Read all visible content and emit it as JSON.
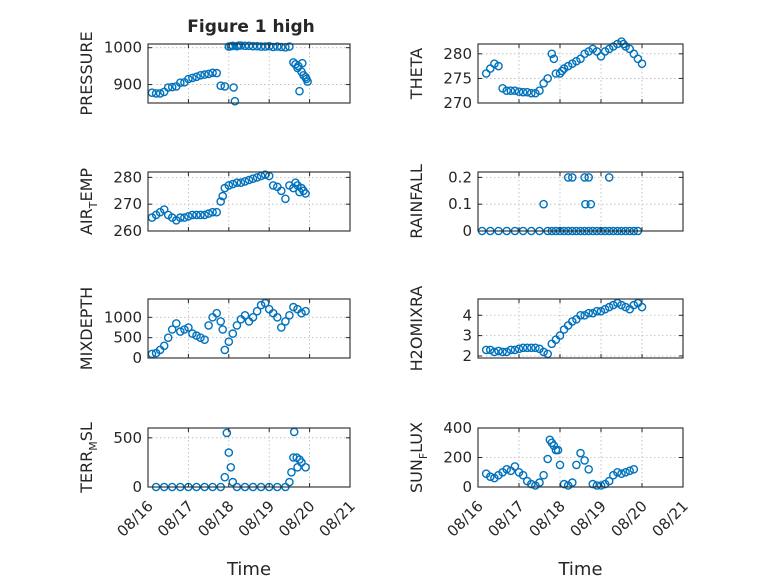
{
  "figure": {
    "title": "Figure 1 high"
  },
  "colors": {
    "marker": "#0072BD",
    "axes": "#262626",
    "grid": "#b8b8b8"
  },
  "chart_data": [
    {
      "type": "scatter",
      "ylabel": "PRESSURE",
      "ylabel_sub": "",
      "ylabel_tail": "",
      "ylim": [
        850,
        1010
      ],
      "yticks": [
        900,
        1000
      ],
      "xlim": [
        0,
        5
      ],
      "grid": true,
      "series": [
        {
          "x": [
            0.1,
            0.2,
            0.3,
            0.4,
            0.5,
            0.6,
            0.7,
            0.8,
            0.9,
            1.0,
            1.1,
            1.2,
            1.3,
            1.4,
            1.5,
            1.6,
            1.7,
            1.8,
            1.9,
            2.0,
            2.05,
            2.1,
            2.12,
            2.15,
            2.2,
            2.25,
            2.3,
            2.4,
            2.5,
            2.6,
            2.7,
            2.8,
            2.9,
            3.0,
            3.1,
            3.2,
            3.3,
            3.4,
            3.5,
            3.6,
            3.65,
            3.7,
            3.72,
            3.75,
            3.8,
            3.82,
            3.85,
            3.9,
            3.92,
            3.95
          ],
          "y": [
            878,
            876,
            876,
            880,
            892,
            893,
            895,
            905,
            906,
            915,
            918,
            921,
            925,
            927,
            929,
            932,
            931,
            897,
            895,
            1003,
            1004,
            1005,
            892,
            855,
            1004,
            1006,
            1006,
            1005,
            1005,
            1004,
            1004,
            1003,
            1003,
            1004,
            1002,
            1003,
            1002,
            1001,
            1003,
            960,
            955,
            945,
            950,
            882,
            935,
            958,
            925,
            920,
            915,
            908
          ]
        }
      ]
    },
    {
      "type": "scatter",
      "ylabel": "THETA",
      "ylabel_sub": "",
      "ylabel_tail": "",
      "ylim": [
        270,
        282
      ],
      "yticks": [
        270,
        275,
        280
      ],
      "xlim": [
        0,
        5
      ],
      "grid": true,
      "series": [
        {
          "x": [
            0.2,
            0.3,
            0.4,
            0.5,
            0.6,
            0.7,
            0.8,
            0.9,
            1.0,
            1.1,
            1.2,
            1.3,
            1.4,
            1.5,
            1.6,
            1.7,
            1.8,
            1.85,
            1.9,
            2.0,
            2.05,
            2.1,
            2.2,
            2.3,
            2.4,
            2.5,
            2.6,
            2.7,
            2.8,
            2.9,
            3.0,
            3.1,
            3.2,
            3.3,
            3.4,
            3.5,
            3.55,
            3.6,
            3.7,
            3.8,
            3.9,
            4.0
          ],
          "y": [
            276,
            277,
            278,
            277.5,
            273,
            272.5,
            272.5,
            272.5,
            272.3,
            272.2,
            272.2,
            272,
            272,
            272.5,
            274,
            275,
            280,
            279,
            276,
            276,
            276.5,
            277,
            277.5,
            278,
            278.5,
            279,
            280,
            280.5,
            281,
            280.5,
            279.5,
            280.5,
            281,
            281.5,
            282,
            282.5,
            282,
            281.5,
            281,
            280,
            279,
            278
          ]
        }
      ]
    },
    {
      "type": "scatter",
      "ylabel": "AIR",
      "ylabel_sub": "T",
      "ylabel_tail": "EMP",
      "ylim": [
        260,
        282
      ],
      "yticks": [
        260,
        270,
        280
      ],
      "xlim": [
        0,
        5
      ],
      "grid": true,
      "series": [
        {
          "x": [
            0.1,
            0.2,
            0.3,
            0.4,
            0.5,
            0.6,
            0.7,
            0.8,
            0.9,
            1.0,
            1.1,
            1.2,
            1.3,
            1.4,
            1.5,
            1.6,
            1.7,
            1.8,
            1.85,
            1.9,
            2.0,
            2.1,
            2.2,
            2.3,
            2.4,
            2.5,
            2.6,
            2.7,
            2.8,
            2.9,
            3.0,
            3.1,
            3.2,
            3.3,
            3.4,
            3.5,
            3.6,
            3.65,
            3.7,
            3.75,
            3.8,
            3.85,
            3.9
          ],
          "y": [
            265,
            266,
            267,
            268,
            266,
            265,
            264,
            265,
            265,
            265.5,
            266,
            266,
            266,
            266,
            266.5,
            267,
            267,
            271,
            273,
            276,
            277,
            277.5,
            278,
            278,
            278.5,
            279,
            279.5,
            280,
            280.5,
            281,
            280.5,
            277,
            276.5,
            275,
            272,
            277,
            276,
            278,
            277,
            274.5,
            276,
            275,
            274
          ]
        }
      ]
    },
    {
      "type": "scatter",
      "ylabel": "RAINFALL",
      "ylabel_sub": "",
      "ylabel_tail": "",
      "ylim": [
        0,
        0.22
      ],
      "yticks": [
        0,
        0.1,
        0.2
      ],
      "xlim": [
        0,
        5
      ],
      "grid": true,
      "series": [
        {
          "x": [
            0.1,
            0.3,
            0.5,
            0.7,
            0.9,
            1.1,
            1.3,
            1.5,
            1.7,
            1.8,
            1.9,
            2.0,
            2.1,
            2.2,
            2.3,
            2.4,
            2.5,
            2.6,
            2.7,
            2.8,
            2.9,
            3.0,
            3.1,
            3.2,
            3.3,
            3.4,
            3.5,
            3.6,
            3.7,
            3.8,
            3.9,
            1.6,
            2.2,
            2.3,
            2.6,
            2.7,
            2.75,
            3.2,
            2.62
          ],
          "y": [
            0,
            0,
            0,
            0,
            0,
            0,
            0,
            0,
            0,
            0,
            0,
            0,
            0,
            0,
            0,
            0,
            0,
            0,
            0,
            0,
            0,
            0,
            0,
            0,
            0,
            0,
            0,
            0,
            0,
            0,
            0,
            0.1,
            0.2,
            0.2,
            0.2,
            0.2,
            0.1,
            0.2,
            0.1
          ]
        }
      ]
    },
    {
      "type": "scatter",
      "ylabel": "MIXDEPTH",
      "ylabel_sub": "",
      "ylabel_tail": "",
      "ylim": [
        0,
        1450
      ],
      "yticks": [
        0,
        500,
        1000
      ],
      "xlim": [
        0,
        5
      ],
      "grid": true,
      "series": [
        {
          "x": [
            0.1,
            0.2,
            0.3,
            0.4,
            0.5,
            0.6,
            0.7,
            0.8,
            0.9,
            1.0,
            1.1,
            1.2,
            1.3,
            1.4,
            1.5,
            1.6,
            1.7,
            1.8,
            1.85,
            1.9,
            2.0,
            2.1,
            2.2,
            2.3,
            2.4,
            2.5,
            2.6,
            2.7,
            2.8,
            2.9,
            3.0,
            3.1,
            3.2,
            3.3,
            3.4,
            3.5,
            3.6,
            3.7,
            3.8,
            3.9
          ],
          "y": [
            100,
            120,
            200,
            300,
            500,
            700,
            850,
            650,
            700,
            750,
            600,
            550,
            500,
            450,
            800,
            1000,
            1100,
            900,
            700,
            200,
            400,
            600,
            800,
            950,
            1050,
            900,
            1000,
            1150,
            1300,
            1350,
            1200,
            1100,
            1000,
            750,
            900,
            1050,
            1250,
            1200,
            1100,
            1150
          ]
        }
      ]
    },
    {
      "type": "scatter",
      "ylabel": "H2OMIXRA",
      "ylabel_sub": "",
      "ylabel_tail": "",
      "ylim": [
        1.9,
        4.8
      ],
      "yticks": [
        2,
        3,
        4
      ],
      "xlim": [
        0,
        5
      ],
      "grid": true,
      "series": [
        {
          "x": [
            0.2,
            0.3,
            0.4,
            0.5,
            0.6,
            0.7,
            0.8,
            0.9,
            1.0,
            1.1,
            1.2,
            1.3,
            1.4,
            1.5,
            1.6,
            1.7,
            1.8,
            1.9,
            2.0,
            2.1,
            2.2,
            2.3,
            2.4,
            2.5,
            2.6,
            2.7,
            2.8,
            2.9,
            3.0,
            3.1,
            3.2,
            3.3,
            3.4,
            3.5,
            3.6,
            3.7,
            3.8,
            3.9,
            4.0
          ],
          "y": [
            2.3,
            2.3,
            2.2,
            2.25,
            2.2,
            2.2,
            2.3,
            2.3,
            2.35,
            2.4,
            2.4,
            2.4,
            2.4,
            2.35,
            2.2,
            2.1,
            2.6,
            2.8,
            3.0,
            3.3,
            3.5,
            3.7,
            3.8,
            4.0,
            4.0,
            4.1,
            4.1,
            4.2,
            4.2,
            4.3,
            4.4,
            4.5,
            4.6,
            4.5,
            4.4,
            4.3,
            4.5,
            4.6,
            4.4
          ]
        }
      ]
    },
    {
      "type": "scatter",
      "ylabel": "TERR",
      "ylabel_sub": "M",
      "ylabel_tail": "SL",
      "ylim": [
        0,
        600
      ],
      "yticks": [
        0,
        500
      ],
      "xlim": [
        0,
        5
      ],
      "grid": true,
      "series": [
        {
          "x": [
            0.2,
            0.4,
            0.6,
            0.8,
            1.0,
            1.2,
            1.4,
            1.6,
            1.8,
            1.9,
            1.95,
            2.0,
            2.05,
            2.1,
            2.2,
            2.4,
            2.6,
            2.8,
            3.0,
            3.2,
            3.4,
            3.5,
            3.55,
            3.6,
            3.7,
            3.8,
            3.9,
            3.62,
            3.68,
            3.75
          ],
          "y": [
            0,
            0,
            0,
            0,
            0,
            0,
            0,
            0,
            0,
            100,
            550,
            350,
            200,
            50,
            0,
            0,
            0,
            0,
            0,
            0,
            0,
            50,
            150,
            300,
            200,
            250,
            200,
            560,
            300,
            280
          ]
        }
      ]
    },
    {
      "type": "scatter",
      "ylabel": "SUN",
      "ylabel_sub": "F",
      "ylabel_tail": "LUX",
      "ylim": [
        0,
        400
      ],
      "yticks": [
        0,
        200,
        400
      ],
      "xlim": [
        0,
        5
      ],
      "grid": true,
      "series": [
        {
          "x": [
            0.2,
            0.3,
            0.4,
            0.5,
            0.6,
            0.7,
            0.8,
            0.9,
            1.0,
            1.1,
            1.2,
            1.3,
            1.4,
            1.5,
            1.6,
            1.7,
            1.75,
            1.8,
            1.85,
            1.9,
            1.95,
            2.0,
            2.1,
            2.2,
            2.3,
            2.4,
            2.5,
            2.6,
            2.7,
            2.8,
            2.9,
            3.0,
            3.1,
            3.2,
            3.3,
            3.4,
            3.5,
            3.6,
            3.7,
            3.8
          ],
          "y": [
            90,
            70,
            60,
            80,
            100,
            120,
            110,
            140,
            100,
            80,
            40,
            20,
            10,
            30,
            80,
            190,
            320,
            300,
            280,
            250,
            250,
            150,
            20,
            10,
            30,
            150,
            230,
            180,
            120,
            20,
            10,
            10,
            20,
            40,
            80,
            100,
            90,
            100,
            110,
            120
          ]
        }
      ]
    }
  ],
  "x_axis": {
    "tick_labels": [
      "08/16",
      "08/17",
      "08/18",
      "08/19",
      "08/20",
      "08/21"
    ],
    "label": "Time"
  }
}
